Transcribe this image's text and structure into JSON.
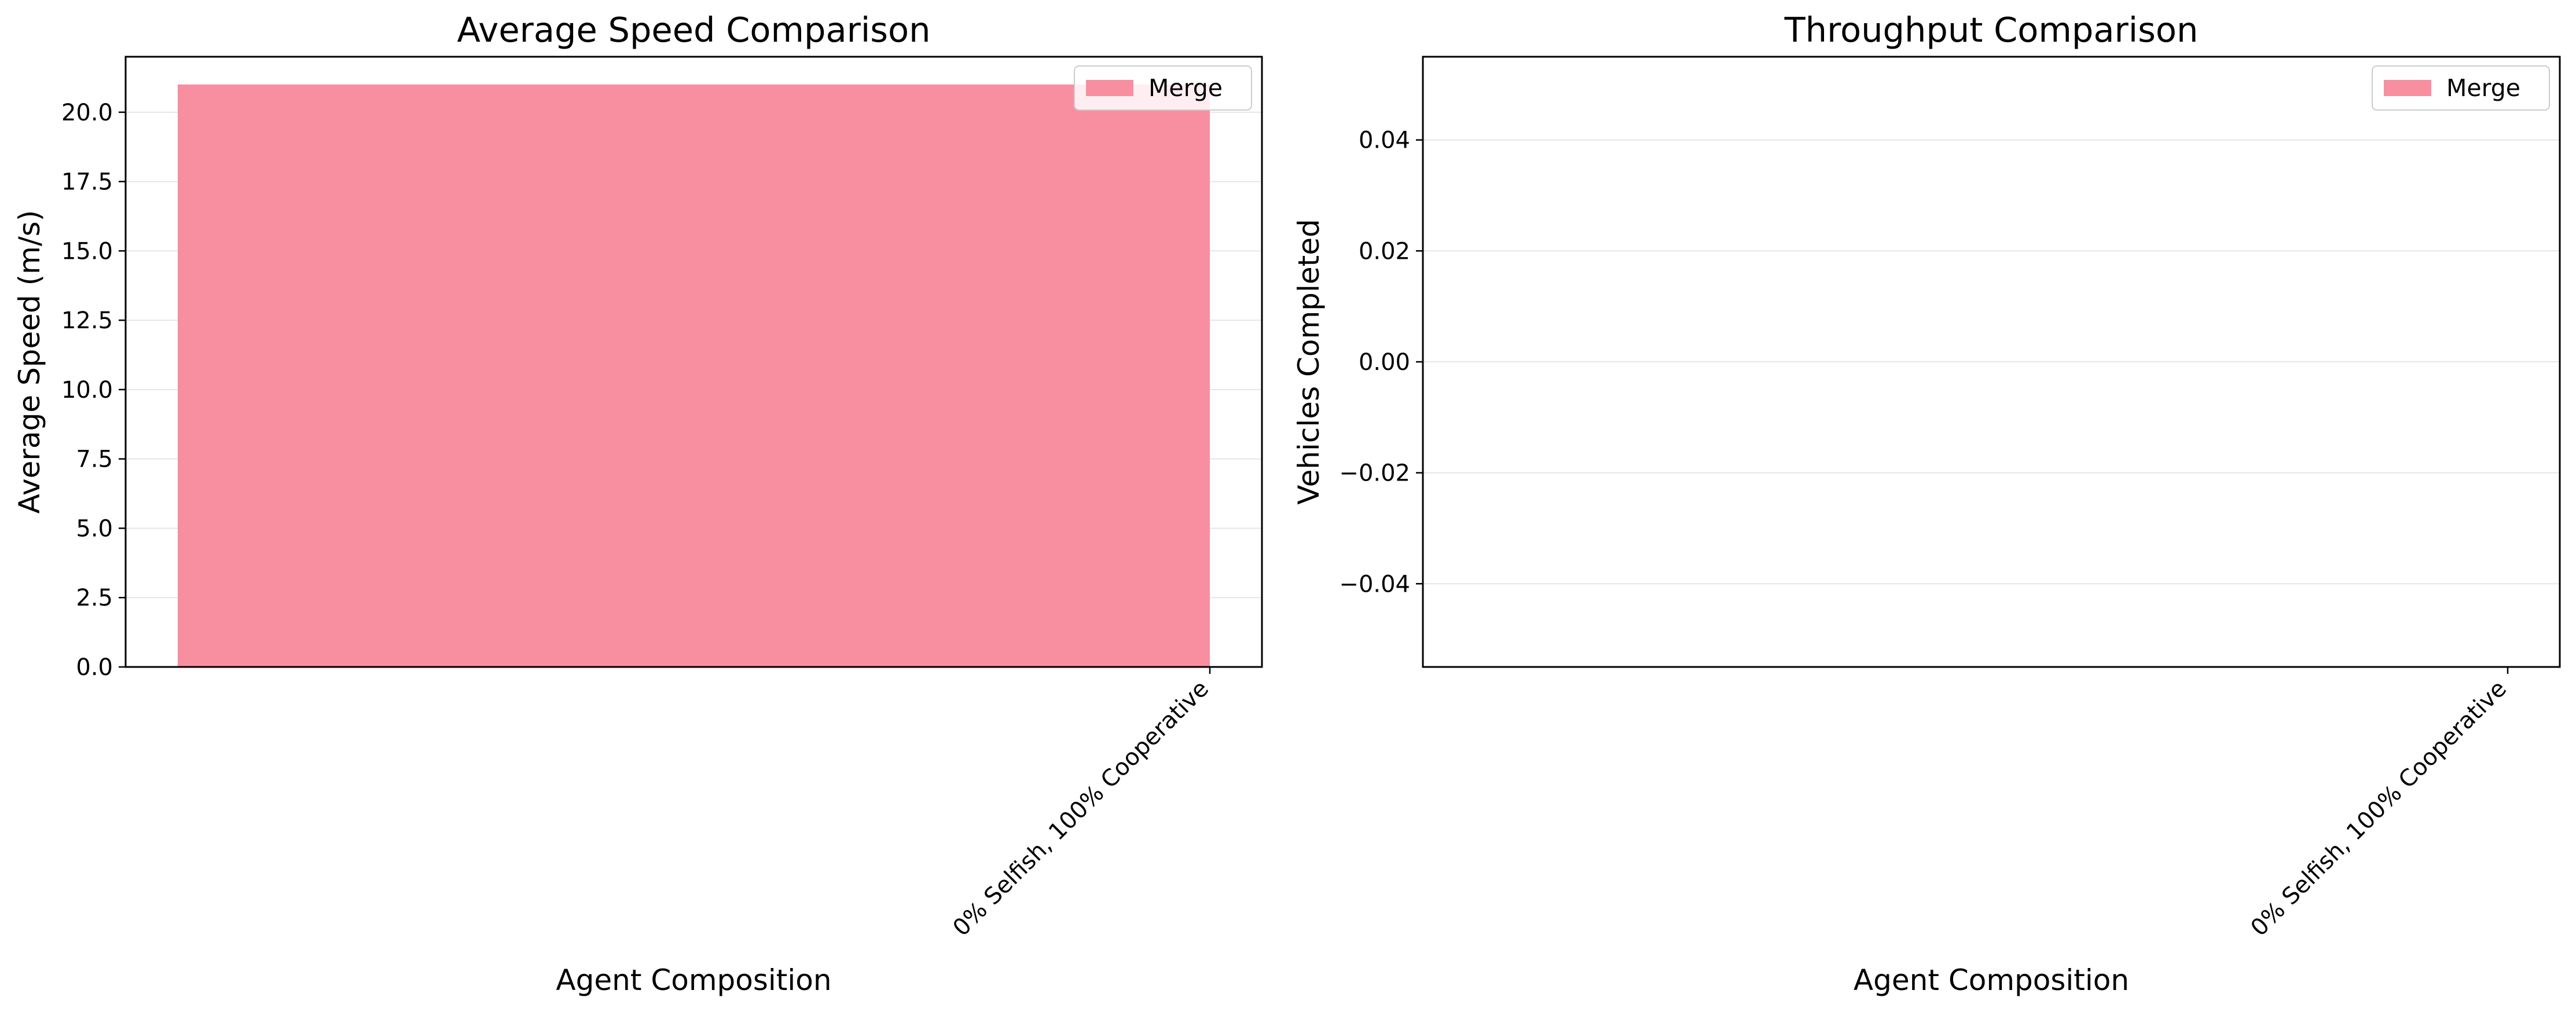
{
  "chart_data": [
    {
      "type": "bar",
      "title": "Average Speed Comparison",
      "xlabel": "Agent Composition",
      "ylabel": "Average Speed (m/s)",
      "categories": [
        "0% Selfish, 100% Cooperative"
      ],
      "series": [
        {
          "name": "Merge",
          "values": [
            21.0
          ]
        }
      ],
      "ylim": [
        0,
        22
      ],
      "yticks": [
        0.0,
        2.5,
        5.0,
        7.5,
        10.0,
        12.5,
        15.0,
        17.5,
        20.0
      ],
      "ytick_labels": [
        "0.0",
        "2.5",
        "5.0",
        "7.5",
        "10.0",
        "12.5",
        "15.0",
        "17.5",
        "20.0"
      ],
      "grid": "y",
      "legend": "top-right"
    },
    {
      "type": "bar",
      "title": "Throughput Comparison",
      "xlabel": "Agent Composition",
      "ylabel": "Vehicles Completed",
      "categories": [
        "0% Selfish, 100% Cooperative"
      ],
      "series": [
        {
          "name": "Merge",
          "values": [
            0
          ]
        }
      ],
      "ylim": [
        -0.055,
        0.055
      ],
      "yticks": [
        -0.04,
        -0.02,
        0.0,
        0.02,
        0.04
      ],
      "ytick_labels": [
        "−0.04",
        "−0.02",
        "0.00",
        "0.02",
        "0.04"
      ],
      "grid": "y",
      "legend": "top-right"
    }
  ],
  "colors": {
    "bar": "#f78fa0",
    "grid": "#e6e6e6",
    "axis": "#000000"
  }
}
